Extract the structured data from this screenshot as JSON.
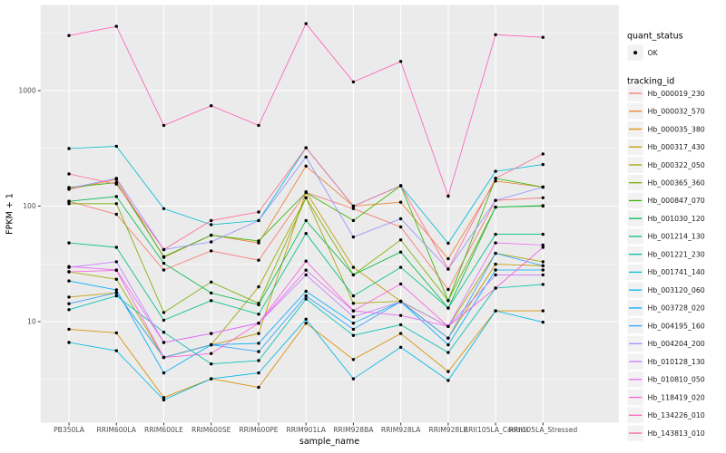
{
  "figure": {
    "background": "#FFFFFF",
    "panel_background": "#EBEBEB",
    "grid_major_color": "#FFFFFF",
    "grid_minor_color": "#FFFFFF",
    "axis_tick_color": "#333333",
    "axis_text_color": "#4D4D4D",
    "point_color": "#000000"
  },
  "legend": {
    "quant_status": {
      "title": "quant_status",
      "items": [
        {
          "label": "OK",
          "marker": "point-icon"
        }
      ]
    },
    "tracking_id_title": "tracking_id"
  },
  "chart_data": {
    "type": "line",
    "title": "",
    "xlabel": "sample_name",
    "ylabel": "FPKM + 1",
    "y_scale": "log10",
    "ylim": [
      1.3,
      5500
    ],
    "grid": true,
    "legend_position": "right",
    "y_tick_values": [
      10,
      100,
      1000
    ],
    "y_tick_labels": [
      "10",
      "100",
      "1000"
    ],
    "y_minor_tick_values": [
      3.162,
      31.62,
      316.2,
      3162
    ],
    "categories": [
      "PB350LA",
      "RRIM600LA",
      "RRIM600LE",
      "RRIM600SE",
      "RRIM600PE",
      "RRIM901LA",
      "RRIM928BA",
      "RRIM928LA",
      "RRIM928LE",
      "RRII105LA_Control",
      "RRII105LA_Stressed"
    ],
    "series": [
      {
        "name": "Hb_000019_230",
        "color": "#F8766D",
        "values": [
          110,
          85,
          28,
          41,
          34,
          131,
          95,
          66,
          19,
          112,
          118
        ]
      },
      {
        "name": "Hb_000032_570",
        "color": "#EA8331",
        "values": [
          140,
          170,
          36,
          56,
          48,
          222,
          100,
          108,
          35,
          165,
          146
        ]
      },
      {
        "name": "Hb_000035_380",
        "color": "#D89000",
        "values": [
          8.6,
          8,
          2.2,
          3.2,
          2.7,
          9.7,
          4.7,
          7.9,
          3.7,
          12.4,
          12.4
        ]
      },
      {
        "name": "Hb_000317_430",
        "color": "#C09B00",
        "values": [
          16.3,
          17.8,
          4.9,
          6.3,
          7.9,
          133,
          29.5,
          15,
          7.2,
          31.4,
          30.5
        ]
      },
      {
        "name": "Hb_000322_050",
        "color": "#A3A500",
        "values": [
          27,
          23.3,
          4.9,
          6.3,
          20,
          118,
          14.4,
          15,
          9.1,
          39,
          33
        ]
      },
      {
        "name": "Hb_000365_360",
        "color": "#7CAE00",
        "values": [
          105,
          105,
          12,
          22,
          14.4,
          118,
          25.4,
          51,
          15.2,
          98,
          100
        ]
      },
      {
        "name": "Hb_000847_070",
        "color": "#39B600",
        "values": [
          145,
          160,
          36.5,
          56,
          50,
          131,
          75,
          150,
          15.2,
          174,
          146
        ]
      },
      {
        "name": "Hb_001030_120",
        "color": "#00BB4E",
        "values": [
          110,
          121,
          32,
          17.7,
          14,
          75,
          25.4,
          40,
          13.1,
          98,
          101
        ]
      },
      {
        "name": "Hb_001214_130",
        "color": "#00C087",
        "values": [
          48,
          44,
          10.3,
          15.2,
          11.6,
          58,
          16.7,
          29.5,
          13.1,
          57,
          57
        ]
      },
      {
        "name": "Hb_001221_230",
        "color": "#00C0B2",
        "values": [
          12.7,
          16.7,
          8.1,
          4.3,
          4.6,
          15.7,
          7.6,
          9.4,
          5.4,
          19.5,
          21
        ]
      },
      {
        "name": "Hb_001741_140",
        "color": "#00BFD4",
        "values": [
          315,
          330,
          95,
          69,
          75,
          320,
          100,
          150,
          47.7,
          200,
          229
        ]
      },
      {
        "name": "Hb_003120_060",
        "color": "#00B8E7",
        "values": [
          6.6,
          5.6,
          2.1,
          3.2,
          3.6,
          10.5,
          3.2,
          6,
          3.1,
          12.4,
          9.9
        ]
      },
      {
        "name": "Hb_003728_020",
        "color": "#00ACFC",
        "values": [
          22.5,
          18.8,
          3.6,
          6.3,
          6.5,
          18.3,
          9.7,
          14.9,
          6.3,
          28,
          28
        ]
      },
      {
        "name": "Hb_004195_160",
        "color": "#35A2FF",
        "values": [
          14.3,
          17.8,
          4.9,
          6.3,
          5.5,
          16.7,
          8.6,
          14.9,
          7.2,
          39,
          30.5
        ]
      },
      {
        "name": "Hb_004204_200",
        "color": "#9590FF",
        "values": [
          142,
          174,
          42,
          49,
          75,
          266,
          54,
          77.6,
          28.5,
          112,
          146
        ]
      },
      {
        "name": "Hb_010128_130",
        "color": "#C77CFF",
        "values": [
          29.5,
          33,
          6.6,
          7.9,
          9.7,
          25.4,
          11,
          14.9,
          9.1,
          25.4,
          25.4
        ]
      },
      {
        "name": "Hb_010810_050",
        "color": "#E76BF3",
        "values": [
          30,
          28,
          6.6,
          7.9,
          9.7,
          27.9,
          12.4,
          11.3,
          9.1,
          48,
          46
        ]
      },
      {
        "name": "Hb_118419_020",
        "color": "#FA62DB",
        "values": [
          27,
          27.8,
          4.9,
          5.3,
          9.7,
          33.4,
          12.4,
          21.2,
          9.1,
          19.5,
          44
        ]
      },
      {
        "name": "Hb_134226_010",
        "color": "#FF62BC",
        "values": [
          3000,
          3600,
          500,
          740,
          500,
          3800,
          1190,
          1790,
          122,
          3050,
          2890
        ]
      },
      {
        "name": "Hb_143813_010",
        "color": "#FF6A98",
        "values": [
          190,
          155,
          42,
          75,
          89,
          320,
          100,
          150,
          28.5,
          174,
          283
        ]
      }
    ]
  }
}
